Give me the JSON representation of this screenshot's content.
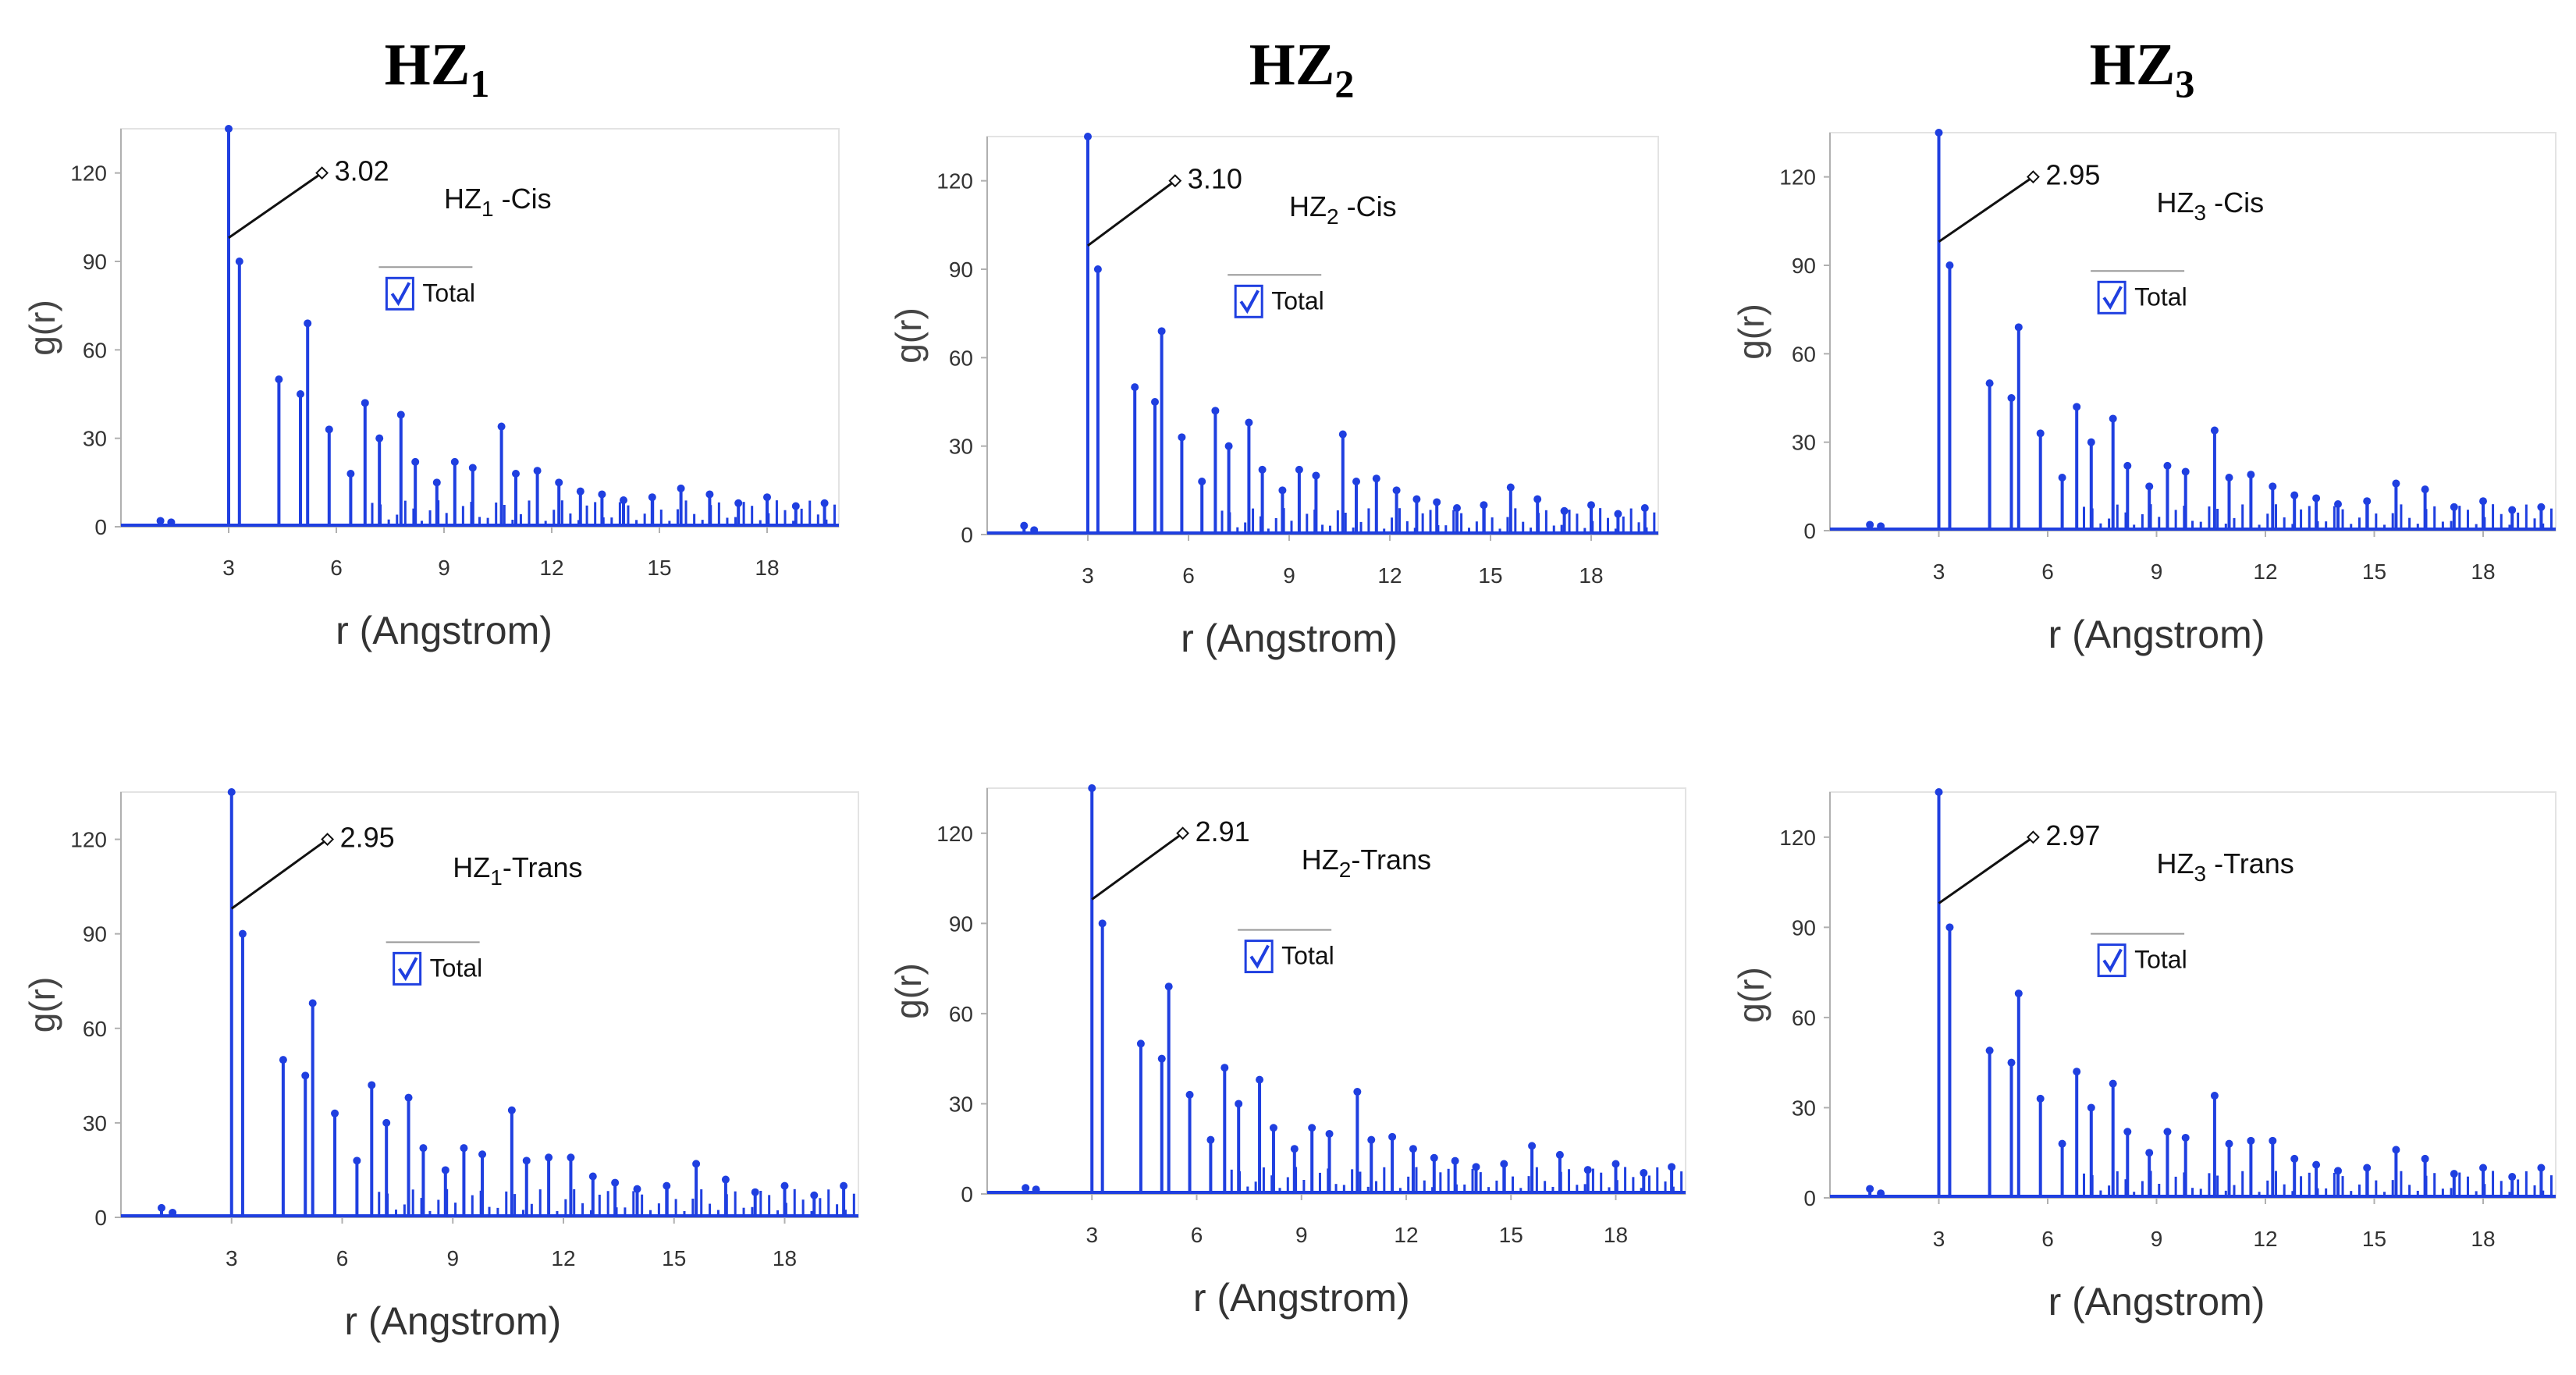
{
  "columns": [
    {
      "base": "HZ",
      "sub": "1"
    },
    {
      "base": "HZ",
      "sub": "2"
    },
    {
      "base": "HZ",
      "sub": "3"
    }
  ],
  "chart_data": [
    {
      "type": "bar",
      "title": "HZ1 -Cis",
      "label_base": "HZ",
      "label_sub": "1",
      "label_suffix": " -Cis",
      "annotation": "3.02",
      "legend": "Total",
      "ylabel": "g(r)",
      "xlabel": "r (Angstrom)",
      "xlim": [
        0,
        20
      ],
      "ylim": [
        0,
        135
      ],
      "xticks": [
        3,
        6,
        9,
        12,
        15,
        18
      ],
      "yticks": [
        0,
        30,
        60,
        90,
        120
      ],
      "x": [
        1.1,
        1.4,
        3.0,
        3.3,
        4.4,
        5.0,
        5.2,
        5.8,
        6.4,
        6.8,
        7.2,
        7.8,
        8.2,
        8.8,
        9.3,
        9.8,
        10.6,
        11.0,
        11.6,
        12.2,
        12.8,
        13.4,
        14.0,
        14.8,
        15.6,
        16.4,
        17.2,
        18.0,
        18.8,
        19.6
      ],
      "values": [
        2,
        1.5,
        135,
        90,
        50,
        45,
        69,
        33,
        18,
        42,
        30,
        38,
        22,
        15,
        22,
        20,
        34,
        18,
        19,
        15,
        12,
        11,
        9,
        10,
        13,
        11,
        8,
        10,
        7,
        8
      ]
    },
    {
      "type": "bar",
      "title": "HZ2 -Cis",
      "label_base": "HZ",
      "label_sub": "2",
      "label_suffix": " -Cis",
      "annotation": "3.10",
      "legend": "Total",
      "ylabel": "g(r)",
      "xlabel": "r (Angstrom)",
      "xlim": [
        0,
        20
      ],
      "ylim": [
        0,
        135
      ],
      "xticks": [
        3,
        6,
        9,
        12,
        15,
        18
      ],
      "yticks": [
        0,
        30,
        60,
        90,
        120
      ],
      "x": [
        1.1,
        1.4,
        3.0,
        3.3,
        4.4,
        5.0,
        5.2,
        5.8,
        6.4,
        6.8,
        7.2,
        7.8,
        8.2,
        8.8,
        9.3,
        9.8,
        10.6,
        11.0,
        11.6,
        12.2,
        12.8,
        13.4,
        14.0,
        14.8,
        15.6,
        16.4,
        17.2,
        18.0,
        18.8,
        19.6
      ],
      "values": [
        3,
        1.5,
        135,
        90,
        50,
        45,
        69,
        33,
        18,
        42,
        30,
        38,
        22,
        15,
        22,
        20,
        34,
        18,
        19,
        15,
        12,
        11,
        9,
        10,
        16,
        12,
        8,
        10,
        7,
        9
      ]
    },
    {
      "type": "bar",
      "title": "HZ3 -Cis",
      "label_base": "HZ",
      "label_sub": "3",
      "label_suffix": " -Cis",
      "annotation": "2.95",
      "legend": "Total",
      "ylabel": "g(r)",
      "xlabel": "r (Angstrom)",
      "xlim": [
        0,
        20
      ],
      "ylim": [
        0,
        135
      ],
      "xticks": [
        3,
        6,
        9,
        12,
        15,
        18
      ],
      "yticks": [
        0,
        30,
        60,
        90,
        120
      ],
      "x": [
        1.1,
        1.4,
        3.0,
        3.3,
        4.4,
        5.0,
        5.2,
        5.8,
        6.4,
        6.8,
        7.2,
        7.8,
        8.2,
        8.8,
        9.3,
        9.8,
        10.6,
        11.0,
        11.6,
        12.2,
        12.8,
        13.4,
        14.0,
        14.8,
        15.6,
        16.4,
        17.2,
        18.0,
        18.8,
        19.6
      ],
      "values": [
        2,
        1.5,
        135,
        90,
        50,
        45,
        69,
        33,
        18,
        42,
        30,
        38,
        22,
        15,
        22,
        20,
        34,
        18,
        19,
        15,
        12,
        11,
        9,
        10,
        16,
        14,
        8,
        10,
        7,
        8
      ]
    },
    {
      "type": "bar",
      "title": "HZ1-Trans",
      "label_base": "HZ",
      "label_sub": "1",
      "label_suffix": "-Trans",
      "annotation": "2.95",
      "legend": "Total",
      "ylabel": "g(r)",
      "xlabel": "r (Angstrom)",
      "xlim": [
        0,
        20
      ],
      "ylim": [
        0,
        135
      ],
      "xticks": [
        3,
        6,
        9,
        12,
        15,
        18
      ],
      "yticks": [
        0,
        30,
        60,
        90,
        120
      ],
      "x": [
        1.1,
        1.4,
        3.0,
        3.3,
        4.4,
        5.0,
        5.2,
        5.8,
        6.4,
        6.8,
        7.2,
        7.8,
        8.2,
        8.8,
        9.3,
        9.8,
        10.6,
        11.0,
        11.6,
        12.2,
        12.8,
        13.4,
        14.0,
        14.8,
        15.6,
        16.4,
        17.2,
        18.0,
        18.8,
        19.6
      ],
      "values": [
        3,
        1.5,
        135,
        90,
        50,
        45,
        68,
        33,
        18,
        42,
        30,
        38,
        22,
        15,
        22,
        20,
        34,
        18,
        19,
        19,
        13,
        11,
        9,
        10,
        17,
        12,
        8,
        10,
        7,
        10
      ]
    },
    {
      "type": "bar",
      "title": "HZ2-Trans",
      "label_base": "HZ",
      "label_sub": "2",
      "label_suffix": "-Trans",
      "annotation": "2.91",
      "legend": "Total",
      "ylabel": "g(r)",
      "xlabel": "r (Angstrom)",
      "xlim": [
        0,
        20
      ],
      "ylim": [
        0,
        135
      ],
      "xticks": [
        3,
        6,
        9,
        12,
        15,
        18
      ],
      "yticks": [
        0,
        30,
        60,
        90,
        120
      ],
      "x": [
        1.1,
        1.4,
        3.0,
        3.3,
        4.4,
        5.0,
        5.2,
        5.8,
        6.4,
        6.8,
        7.2,
        7.8,
        8.2,
        8.8,
        9.3,
        9.8,
        10.6,
        11.0,
        11.6,
        12.2,
        12.8,
        13.4,
        14.0,
        14.8,
        15.6,
        16.4,
        17.2,
        18.0,
        18.8,
        19.6
      ],
      "values": [
        2,
        1.5,
        135,
        90,
        50,
        45,
        69,
        33,
        18,
        42,
        30,
        38,
        22,
        15,
        22,
        20,
        34,
        18,
        19,
        15,
        12,
        11,
        9,
        10,
        16,
        13,
        8,
        10,
        7,
        9
      ]
    },
    {
      "type": "bar",
      "title": "HZ3 -Trans",
      "label_base": "HZ",
      "label_sub": "3",
      "label_suffix": " -Trans",
      "annotation": "2.97",
      "legend": "Total",
      "ylabel": "g(r)",
      "xlabel": "r (Angstrom)",
      "xlim": [
        0,
        20
      ],
      "ylim": [
        0,
        135
      ],
      "xticks": [
        3,
        6,
        9,
        12,
        15,
        18
      ],
      "yticks": [
        0,
        30,
        60,
        90,
        120
      ],
      "x": [
        1.1,
        1.4,
        3.0,
        3.3,
        4.4,
        5.0,
        5.2,
        5.8,
        6.4,
        6.8,
        7.2,
        7.8,
        8.2,
        8.8,
        9.3,
        9.8,
        10.6,
        11.0,
        11.6,
        12.2,
        12.8,
        13.4,
        14.0,
        14.8,
        15.6,
        16.4,
        17.2,
        18.0,
        18.8,
        19.6
      ],
      "values": [
        3,
        1.5,
        135,
        90,
        49,
        45,
        68,
        33,
        18,
        42,
        30,
        38,
        22,
        15,
        22,
        20,
        34,
        18,
        19,
        19,
        13,
        11,
        9,
        10,
        16,
        13,
        8,
        10,
        7,
        10
      ]
    }
  ],
  "colors": {
    "series": "#1f3fe0",
    "axis": "#b0b0b0",
    "text": "#222222",
    "annot_line": "#111111"
  }
}
